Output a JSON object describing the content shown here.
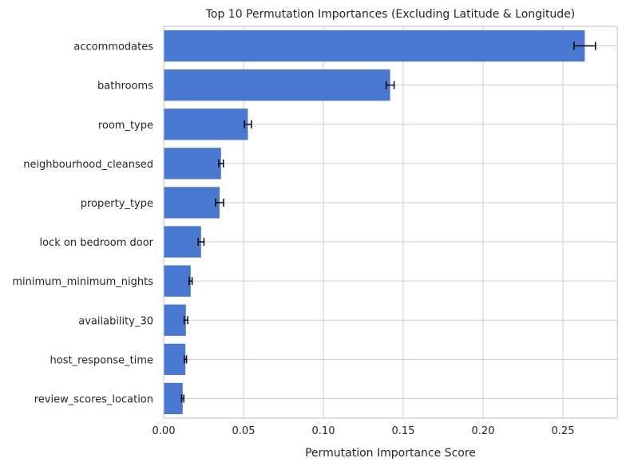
{
  "chart_data": {
    "type": "bar",
    "orientation": "horizontal",
    "title": "Top 10 Permutation Importances (Excluding Latitude & Longitude)",
    "xlabel": "Permutation Importance Score",
    "ylabel": "",
    "xlim": [
      0.0,
      0.284
    ],
    "x_ticks": [
      "0.00",
      "0.05",
      "0.10",
      "0.15",
      "0.20",
      "0.25"
    ],
    "x_tick_values": [
      0.0,
      0.05,
      0.1,
      0.15,
      0.2,
      0.25
    ],
    "grid": true,
    "categories": [
      "accommodates",
      "bathrooms",
      "room_type",
      "neighbourhood_cleansed",
      "property_type",
      "lock on bedroom door",
      "minimum_minimum_nights",
      "availability_30",
      "host_response_time",
      "review_scores_location"
    ],
    "values": [
      0.2637,
      0.1418,
      0.0527,
      0.0359,
      0.035,
      0.0234,
      0.0169,
      0.0139,
      0.0136,
      0.0119
    ],
    "errors": [
      0.0067,
      0.0025,
      0.0022,
      0.0015,
      0.0025,
      0.0018,
      0.0009,
      0.0011,
      0.0007,
      0.0007
    ],
    "colors": {
      "bar": "#4878d0",
      "error": "#000000",
      "grid": "#cccccc",
      "text": "#262626",
      "spine": "#cccccc"
    }
  }
}
